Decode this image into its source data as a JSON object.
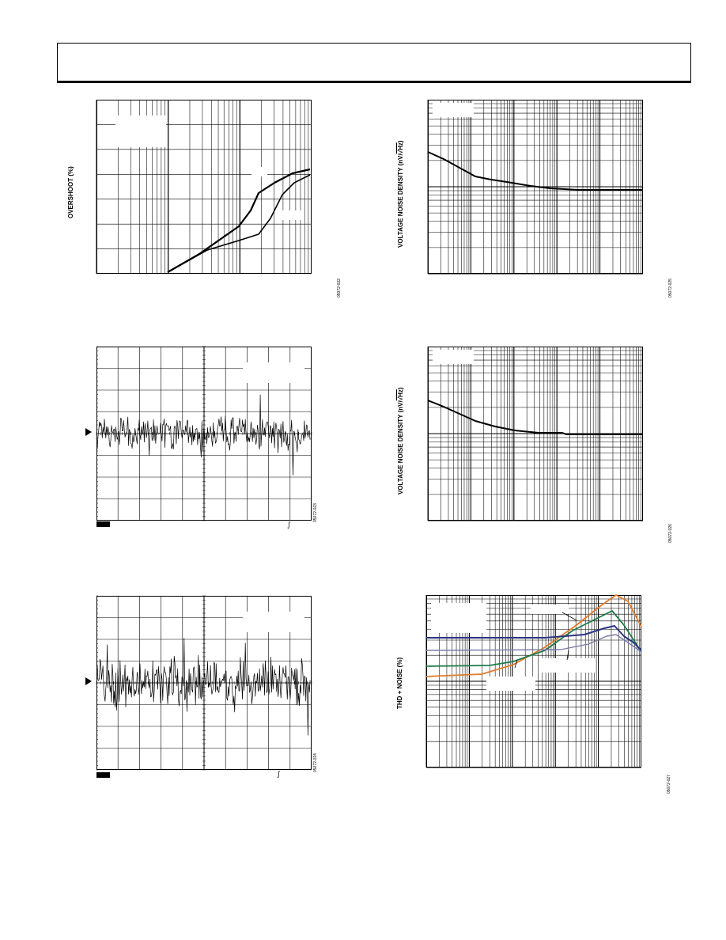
{
  "page": {
    "header_text": ""
  },
  "figures": {
    "overshoot": {
      "ylabel": "OVERSHOOT (%)",
      "fig_number": "05072-022"
    },
    "noise_time_1": {
      "fig_number": "05072-023"
    },
    "noise_time_2": {
      "fig_number": "05072-024"
    },
    "noise_density_1": {
      "ylabel": "VOLTAGE NOISE DENSITY (nV/√Hz)",
      "ylabel_main": "VOLTAGE NOISE DENSITY (nV/",
      "ylabel_root": "√Hz",
      "ylabel_close": ")",
      "fig_number": "05072-025"
    },
    "noise_density_2": {
      "ylabel_main": "VOLTAGE NOISE DENSITY (nV/",
      "ylabel_root": "√Hz",
      "ylabel_close": ")",
      "fig_number": "05072-026"
    },
    "thd_noise": {
      "ylabel": "THD + NOISE (%)",
      "fig_number": "05072-027"
    }
  },
  "chart_data": [
    {
      "type": "line",
      "name": "overshoot",
      "x_scale": "log",
      "grid": true,
      "series": [
        {
          "values_shape": "rises from lower-left, bends up near right, flattens at top"
        },
        {
          "values_shape": "rises slowly, steps up near right, flattens at top"
        }
      ],
      "colors": [
        "#000000",
        "#000000"
      ]
    },
    {
      "type": "line",
      "name": "noise_time_1",
      "grid": true,
      "x_divisions": 10,
      "y_divisions": 8
    },
    {
      "type": "line",
      "name": "noise_time_2",
      "grid": true,
      "x_divisions": 10,
      "y_divisions": 8
    },
    {
      "type": "line",
      "name": "noise_density_1",
      "x_scale": "log",
      "y_scale": "log",
      "grid": true,
      "series": [
        {
          "values_shape": "decreasing 1/f region then flat white-noise floor"
        }
      ]
    },
    {
      "type": "line",
      "name": "noise_density_2",
      "x_scale": "log",
      "y_scale": "log",
      "grid": true,
      "series": [
        {
          "values_shape": "decreasing 1/f region then flat white-noise floor"
        }
      ]
    },
    {
      "type": "line",
      "name": "thd_noise",
      "x_scale": "log",
      "y_scale": "log",
      "grid": true,
      "colors": [
        "#e07b2a",
        "#1f7a4a",
        "#2a3580",
        "#7a7aa8"
      ]
    }
  ]
}
